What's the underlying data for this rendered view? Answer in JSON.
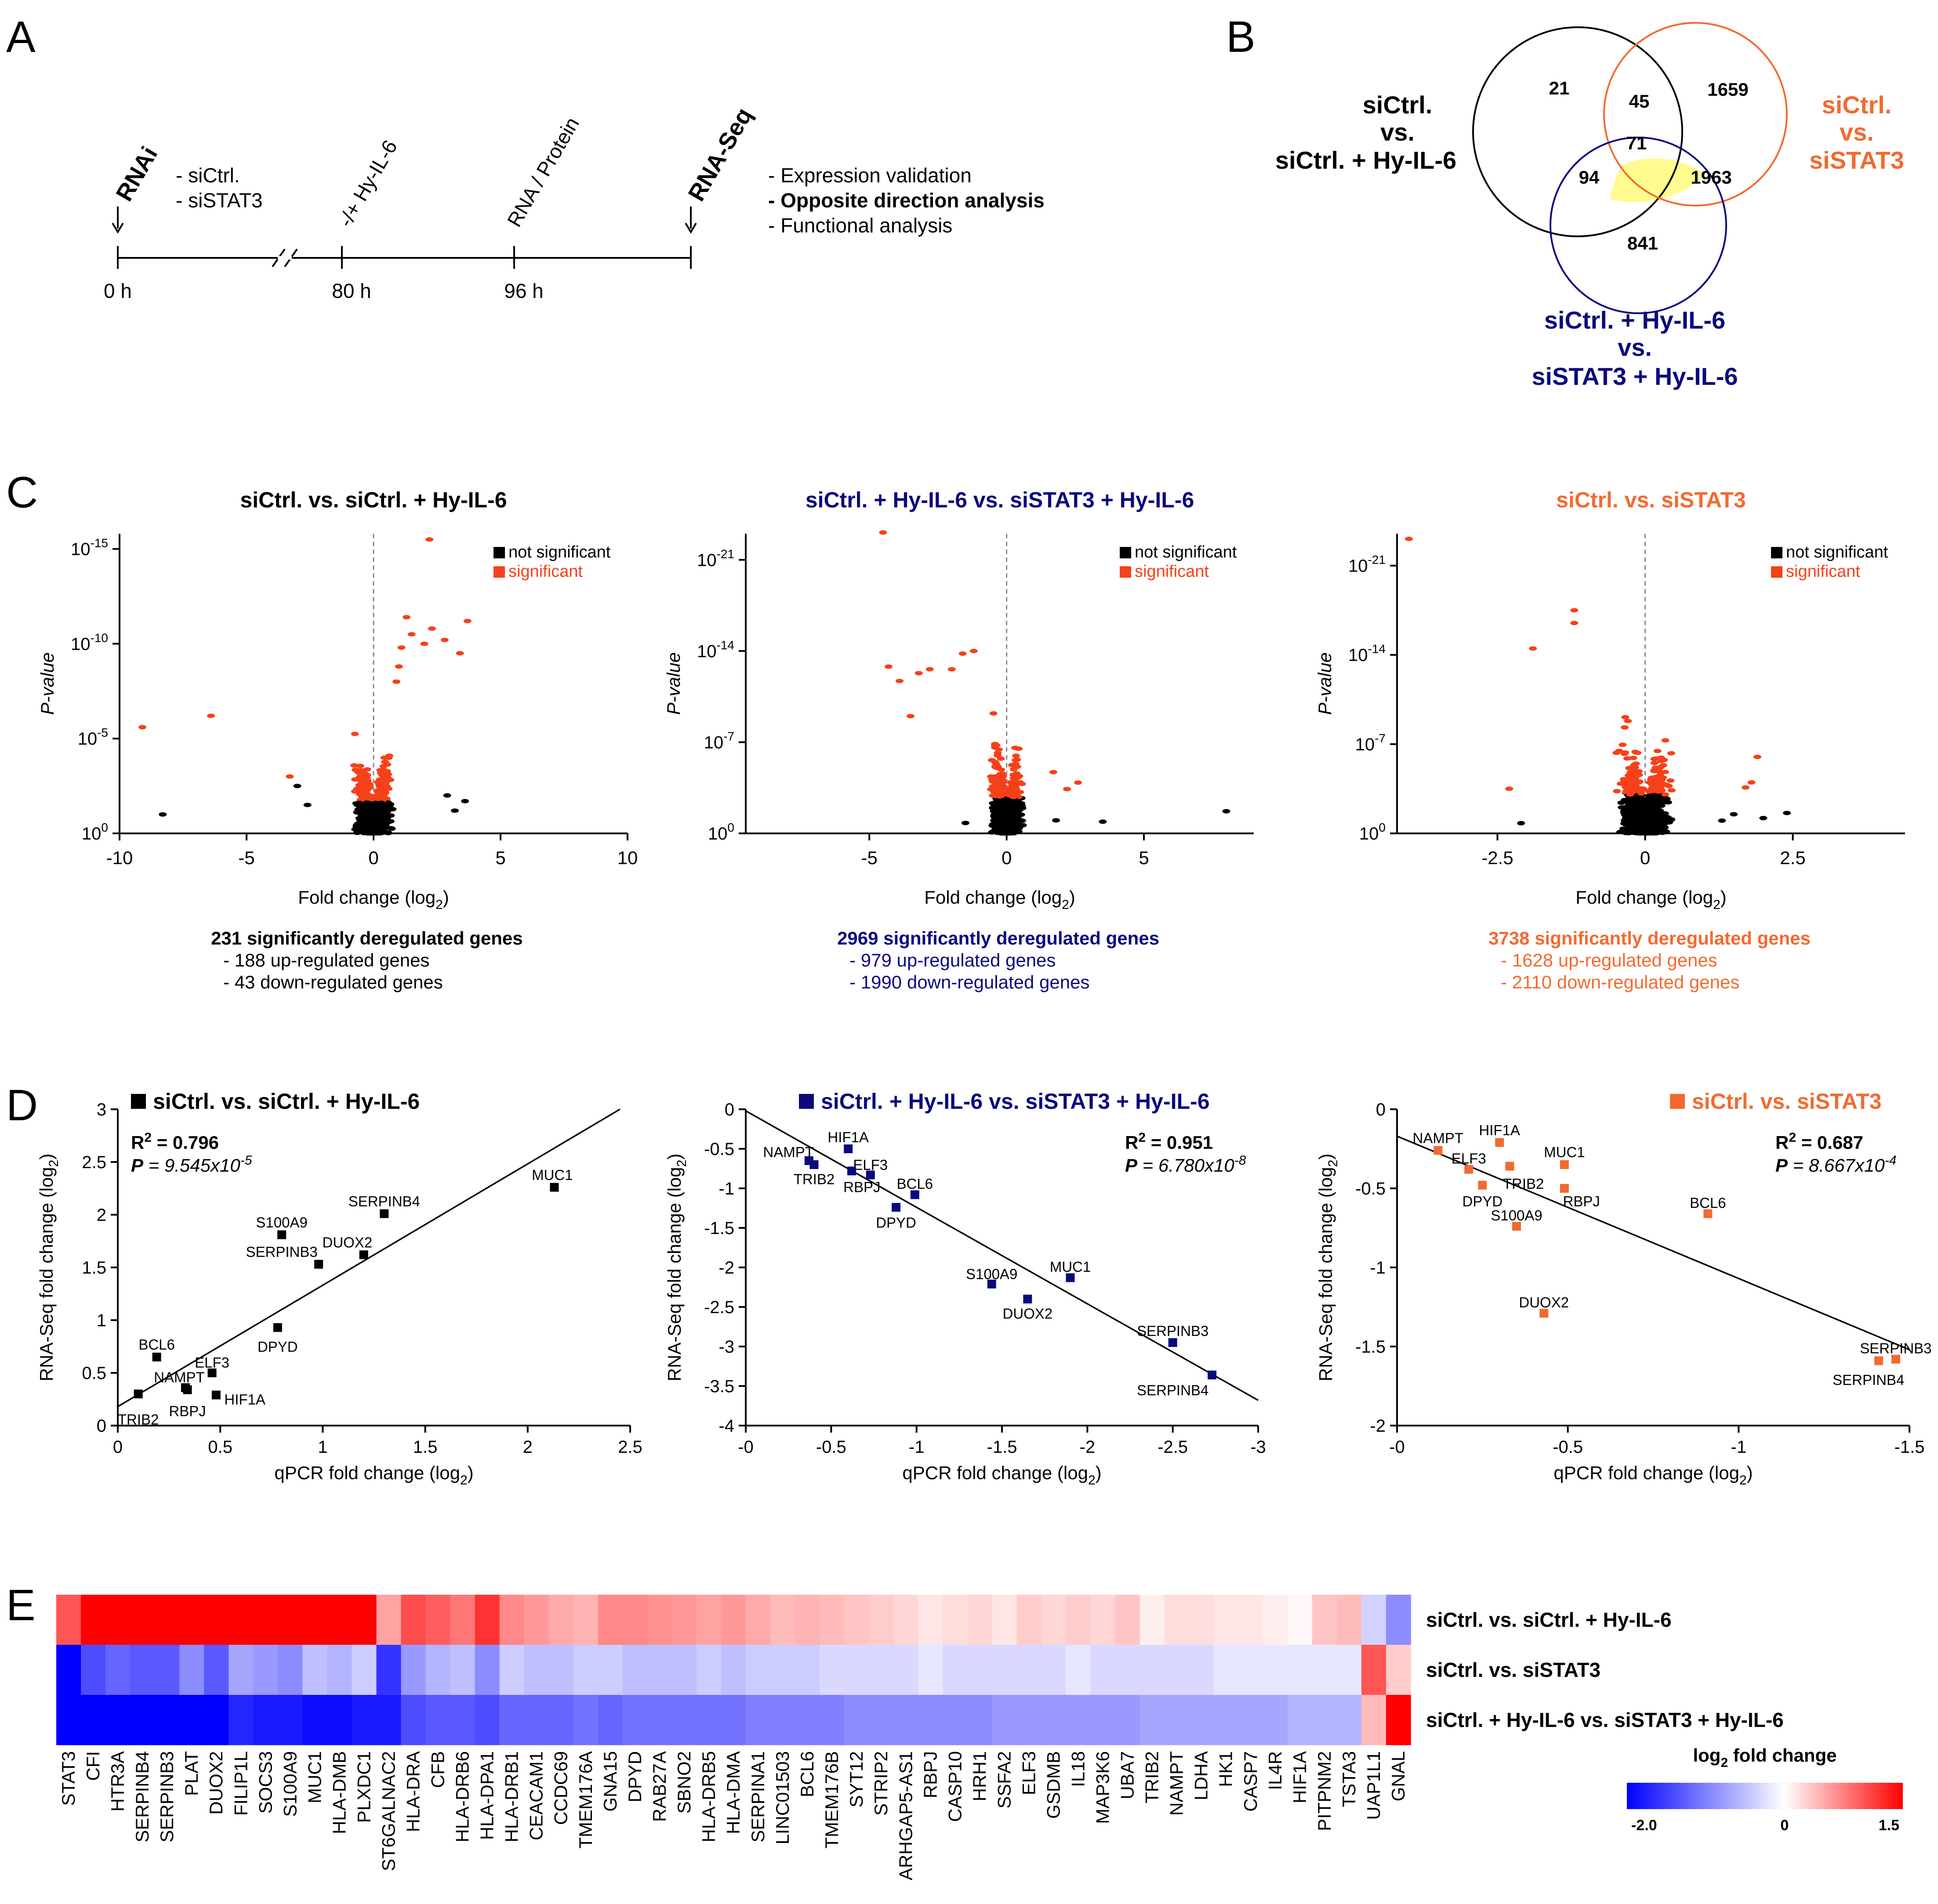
{
  "colors": {
    "black": "#000000",
    "navy": "#0A0A7D",
    "orange": "#F26A30",
    "red": "#F5411A",
    "yellow": "#FFFB8F",
    "blue": "#0000FF",
    "hmred": "#FF0000"
  },
  "panel_letters": [
    "A",
    "B",
    "C",
    "D",
    "E"
  ],
  "panel_a": {
    "rnai": "RNAi",
    "sirna": [
      "- siCtrl.",
      "- siSTAT3"
    ],
    "hy": "-/+ Hy-IL-6",
    "rnaprot": "RNA / Protein",
    "rnaseq": "RNA-Seq",
    "times": [
      "0 h",
      "80 h",
      "96 h"
    ],
    "analyses": [
      "- Expression validation",
      "- Opposite direction analysis",
      "- Functional analysis"
    ]
  },
  "panel_b": {
    "label_black": [
      "siCtrl.",
      "vs.",
      "siCtrl. + Hy-IL-6"
    ],
    "label_orange": [
      "siCtrl.",
      "vs.",
      "siSTAT3"
    ],
    "label_navy": [
      "siCtrl. + Hy-IL-6",
      "vs.",
      "siSTAT3 + Hy-IL-6"
    ],
    "counts": {
      "black_only": "21",
      "black_orange": "45",
      "orange_only": "1659",
      "center": "71",
      "black_navy": "94",
      "orange_navy": "1963",
      "navy_only": "841"
    }
  },
  "legend": {
    "not_sig": "not significant",
    "sig": "significant"
  },
  "chart_data": [
    {
      "type": "scatter",
      "panel": "C1",
      "title": "siCtrl. vs. siCtrl. + Hy-IL-6",
      "xlabel_main": "Fold change (log",
      "xlabel_sub": "2",
      "xlabel_end": ")",
      "ylabel": "P-value",
      "xlim": [
        -10,
        10
      ],
      "xticks": [
        "-10",
        "-5",
        "0",
        "5",
        "10"
      ],
      "ylim_exp": [
        0,
        15.8
      ],
      "yticks": [
        {
          "v": 0,
          "base": "10",
          "exp": "0"
        },
        {
          "v": 5,
          "base": "10",
          "exp": "-5"
        },
        {
          "v": 10,
          "base": "10",
          "exp": "-10"
        },
        {
          "v": 15,
          "base": "10",
          "exp": "-15"
        }
      ],
      "points_sig": [
        [
          2.2,
          15.5
        ],
        [
          -6.4,
          6.2
        ],
        [
          -9.1,
          5.6
        ],
        [
          3.7,
          11.2
        ],
        [
          2.8,
          10.2
        ],
        [
          2.3,
          10.8
        ],
        [
          2.0,
          10.0
        ],
        [
          1.3,
          11.4
        ],
        [
          1.5,
          10.5
        ],
        [
          1.1,
          9.8
        ],
        [
          1.0,
          8.8
        ],
        [
          0.9,
          8.0
        ],
        [
          3.4,
          9.5
        ],
        [
          -3.3,
          3.0
        ]
      ],
      "points_ns": [
        [
          -8.3,
          1.0
        ],
        [
          3.6,
          1.7
        ],
        [
          -3.0,
          2.5
        ],
        [
          2.9,
          2.0
        ],
        [
          -2.6,
          1.5
        ],
        [
          3.2,
          1.2
        ]
      ],
      "summary": [
        "231 significantly deregulated genes",
        "- 188 up-regulated genes",
        "- 43 down-regulated genes"
      ]
    },
    {
      "type": "scatter",
      "panel": "C2",
      "title": "siCtrl. + Hy-IL-6  vs. siSTAT3 + Hy-IL-6",
      "xlabel_main": "Fold change (log",
      "xlabel_sub": "2",
      "xlabel_end": ")",
      "ylabel": "P-value",
      "xlim": [
        -9.5,
        9
      ],
      "xticks": [
        "-5",
        "0",
        "5"
      ],
      "ylim_exp": [
        0,
        23
      ],
      "yticks": [
        {
          "v": 0,
          "base": "10",
          "exp": "0"
        },
        {
          "v": 7,
          "base": "10",
          "exp": "-7"
        },
        {
          "v": 14,
          "base": "10",
          "exp": "-14"
        },
        {
          "v": 21,
          "base": "10",
          "exp": "-21"
        }
      ],
      "points_sig": [
        [
          -4.5,
          23.1
        ],
        [
          -4.3,
          12.8
        ],
        [
          -2.8,
          12.6
        ],
        [
          -3.9,
          11.7
        ],
        [
          -3.2,
          12.3
        ],
        [
          -1.6,
          13.8
        ],
        [
          -1.2,
          14.0
        ],
        [
          -3.5,
          9.0
        ],
        [
          -2.0,
          12.6
        ],
        [
          2.6,
          3.9
        ],
        [
          1.7,
          4.7
        ],
        [
          2.2,
          3.4
        ]
      ],
      "points_ns": [
        [
          8.0,
          1.7
        ],
        [
          3.5,
          0.9
        ],
        [
          -1.5,
          0.8
        ],
        [
          1.8,
          1.0
        ]
      ],
      "summary": [
        "2969 significantly deregulated genes",
        "- 979 up-regulated genes",
        "- 1990 down-regulated genes"
      ]
    },
    {
      "type": "scatter",
      "panel": "C3",
      "title": "siCtrl. vs. siSTAT3",
      "xlabel_main": "Fold change (log",
      "xlabel_sub": "2",
      "xlabel_end": ")",
      "ylabel": "P-value",
      "xlim": [
        -4.2,
        4.4
      ],
      "xticks": [
        "-2.5",
        "0",
        "2.5"
      ],
      "ylim_exp": [
        0,
        23.5
      ],
      "yticks": [
        {
          "v": 0,
          "base": "10",
          "exp": "0"
        },
        {
          "v": 7,
          "base": "10",
          "exp": "-7"
        },
        {
          "v": 14,
          "base": "10",
          "exp": "-14"
        },
        {
          "v": 21,
          "base": "10",
          "exp": "-21"
        }
      ],
      "points_sig": [
        [
          -4.0,
          23.1
        ],
        [
          -1.2,
          17.5
        ],
        [
          -1.2,
          16.5
        ],
        [
          -1.9,
          14.5
        ],
        [
          1.8,
          4.0
        ],
        [
          1.7,
          3.6
        ],
        [
          -2.3,
          3.5
        ],
        [
          1.9,
          6.0
        ]
      ],
      "points_ns": [
        [
          2.4,
          1.6
        ],
        [
          1.5,
          1.5
        ],
        [
          -2.1,
          0.8
        ],
        [
          1.3,
          1.0
        ],
        [
          2.0,
          1.2
        ]
      ],
      "summary": [
        "3738 significantly deregulated genes",
        "- 1628 up-regulated genes",
        "- 2110 down-regulated genes"
      ]
    },
    {
      "type": "scatter",
      "panel": "D1",
      "title": "siCtrl. vs. siCtrl. + Hy-IL-6",
      "xlabel_main": "qPCR fold change (log",
      "xlabel_sub": "2",
      "xlabel_end": ")",
      "ylabel_main": "RNA-Seq fold change (log",
      "ylabel_sub": "2",
      "ylabel_end": ")",
      "r2_label": "R",
      "r2_exp": "2",
      "r2_val": " = 0.796",
      "p_label": "P",
      "p_val": " = 9.545x10",
      "p_exp": "-5",
      "xlim": [
        0,
        2.5
      ],
      "ylim": [
        0,
        3
      ],
      "xticks": [
        [
          0,
          "0"
        ],
        [
          0.5,
          "0.5"
        ],
        [
          1,
          "1"
        ],
        [
          1.5,
          "1.5"
        ],
        [
          2,
          "2"
        ],
        [
          2.5,
          "2.5"
        ]
      ],
      "yticks": [
        [
          0,
          "0"
        ],
        [
          0.5,
          "0.5"
        ],
        [
          1,
          "1"
        ],
        [
          1.5,
          "1.5"
        ],
        [
          2,
          "2"
        ],
        [
          2.5,
          "2.5"
        ],
        [
          3,
          "3"
        ]
      ],
      "fit": [
        [
          0,
          0.18
        ],
        [
          2.45,
          3.0
        ]
      ],
      "points": [
        {
          "gene": "MUC1",
          "x": 2.13,
          "y": 2.26,
          "lx": 2.12,
          "ly": 2.38
        },
        {
          "gene": "SERPINB4",
          "x": 1.3,
          "y": 2.01,
          "lx": 1.3,
          "ly": 2.13
        },
        {
          "gene": "S100A9",
          "x": 0.8,
          "y": 1.81,
          "lx": 0.8,
          "ly": 1.93
        },
        {
          "gene": "DUOX2",
          "x": 1.2,
          "y": 1.62,
          "lx": 1.12,
          "ly": 1.74
        },
        {
          "gene": "SERPINB3",
          "x": 0.98,
          "y": 1.53,
          "lx": 0.8,
          "ly": 1.65
        },
        {
          "gene": "DPYD",
          "x": 0.78,
          "y": 0.93,
          "lx": 0.78,
          "ly": 0.75
        },
        {
          "gene": "BCL6",
          "x": 0.19,
          "y": 0.65,
          "lx": 0.19,
          "ly": 0.77
        },
        {
          "gene": "ELF3",
          "x": 0.46,
          "y": 0.5,
          "lx": 0.46,
          "ly": 0.6
        },
        {
          "gene": "NAMPT",
          "x": 0.33,
          "y": 0.36,
          "lx": 0.3,
          "ly": 0.46
        },
        {
          "gene": "RBPJ",
          "x": 0.34,
          "y": 0.34,
          "lx": 0.34,
          "ly": 0.14
        },
        {
          "gene": "HIF1A",
          "x": 0.48,
          "y": 0.29,
          "lx": 0.62,
          "ly": 0.25
        },
        {
          "gene": "TRIB2",
          "x": 0.1,
          "y": 0.3,
          "lx": 0.1,
          "ly": 0.06
        }
      ]
    },
    {
      "type": "scatter",
      "panel": "D2",
      "title": "siCtrl. + Hy-IL-6 vs. siSTAT3 + Hy-IL-6",
      "xlabel_main": "qPCR fold change (log",
      "xlabel_sub": "2",
      "xlabel_end": ")",
      "ylabel_main": "RNA-Seq fold change (log",
      "ylabel_sub": "2",
      "ylabel_end": ")",
      "r2_label": "R",
      "r2_exp": "2",
      "r2_val": " = 0.951",
      "p_label": "P",
      "p_val": " = 6.780x10",
      "p_exp": "-8",
      "xlim": [
        0,
        -3
      ],
      "ylim": [
        -4,
        0
      ],
      "xticks": [
        [
          0,
          "-0"
        ],
        [
          -0.5,
          "-0.5"
        ],
        [
          -1,
          "-1"
        ],
        [
          -1.5,
          "-1.5"
        ],
        [
          -2,
          "-2"
        ],
        [
          -2.5,
          "-2.5"
        ],
        [
          -3,
          "-3"
        ]
      ],
      "yticks": [
        [
          0,
          "0"
        ],
        [
          -0.5,
          "-0.5"
        ],
        [
          -1,
          "-1"
        ],
        [
          -1.5,
          "-1.5"
        ],
        [
          -2,
          "-2"
        ],
        [
          -2.5,
          "-2.5"
        ],
        [
          -3,
          "-3"
        ],
        [
          -3.5,
          "-3.5"
        ],
        [
          -4,
          "-4"
        ]
      ],
      "fit": [
        [
          0,
          -0.02
        ],
        [
          -3,
          -3.68
        ]
      ],
      "points": [
        {
          "gene": "HIF1A",
          "x": -0.6,
          "y": -0.5,
          "lx": -0.6,
          "ly": -0.35
        },
        {
          "gene": "NAMPT",
          "x": -0.37,
          "y": -0.65,
          "lx": -0.25,
          "ly": -0.54
        },
        {
          "gene": "ELF3",
          "x": -0.73,
          "y": -0.83,
          "lx": -0.73,
          "ly": -0.7
        },
        {
          "gene": "TRIB2",
          "x": -0.4,
          "y": -0.7,
          "lx": -0.4,
          "ly": -0.88
        },
        {
          "gene": "RBPJ",
          "x": -0.62,
          "y": -0.78,
          "lx": -0.68,
          "ly": -0.98
        },
        {
          "gene": "BCL6",
          "x": -0.99,
          "y": -1.08,
          "lx": -0.99,
          "ly": -0.94
        },
        {
          "gene": "DPYD",
          "x": -0.88,
          "y": -1.24,
          "lx": -0.88,
          "ly": -1.43
        },
        {
          "gene": "S100A9",
          "x": -1.44,
          "y": -2.21,
          "lx": -1.44,
          "ly": -2.08
        },
        {
          "gene": "MUC1",
          "x": -1.9,
          "y": -2.13,
          "lx": -1.9,
          "ly": -1.99
        },
        {
          "gene": "DUOX2",
          "x": -1.65,
          "y": -2.4,
          "lx": -1.65,
          "ly": -2.58
        },
        {
          "gene": "SERPINB3",
          "x": -2.5,
          "y": -2.95,
          "lx": -2.5,
          "ly": -2.8
        },
        {
          "gene": "SERPINB4",
          "x": -2.73,
          "y": -3.36,
          "lx": -2.5,
          "ly": -3.55
        }
      ]
    },
    {
      "type": "scatter",
      "panel": "D3",
      "title": "siCtrl. vs. siSTAT3",
      "xlabel_main": "qPCR fold change (log",
      "xlabel_sub": "2",
      "xlabel_end": ")",
      "ylabel_main": "RNA-Seq fold change (log",
      "ylabel_sub": "2",
      "ylabel_end": ")",
      "r2_label": "R",
      "r2_exp": "2",
      "r2_val": " = 0.687",
      "p_label": "P",
      "p_val": " = 8.667x10",
      "p_exp": "-4",
      "xlim": [
        0,
        -1.5
      ],
      "ylim": [
        -2,
        0
      ],
      "xticks": [
        [
          0,
          "-0"
        ],
        [
          -0.5,
          "-0.5"
        ],
        [
          -1,
          "-1"
        ],
        [
          -1.5,
          "-1.5"
        ]
      ],
      "yticks": [
        [
          0,
          "0"
        ],
        [
          -0.5,
          "-0.5"
        ],
        [
          -1,
          "-1"
        ],
        [
          -1.5,
          "-1.5"
        ],
        [
          -2,
          "-2"
        ]
      ],
      "fit": [
        [
          0,
          -0.17
        ],
        [
          -1.5,
          -1.52
        ]
      ],
      "points": [
        {
          "gene": "NAMPT",
          "x": -0.12,
          "y": -0.26,
          "lx": -0.12,
          "ly": -0.18
        },
        {
          "gene": "HIF1A",
          "x": -0.3,
          "y": -0.21,
          "lx": -0.3,
          "ly": -0.13
        },
        {
          "gene": "ELF3",
          "x": -0.21,
          "y": -0.38,
          "lx": -0.21,
          "ly": -0.31
        },
        {
          "gene": "TRIB2",
          "x": -0.33,
          "y": -0.36,
          "lx": -0.37,
          "ly": -0.47
        },
        {
          "gene": "MUC1",
          "x": -0.49,
          "y": -0.35,
          "lx": -0.49,
          "ly": -0.27
        },
        {
          "gene": "DPYD",
          "x": -0.25,
          "y": -0.48,
          "lx": -0.25,
          "ly": -0.58
        },
        {
          "gene": "RBPJ",
          "x": -0.49,
          "y": -0.5,
          "lx": -0.54,
          "ly": -0.58
        },
        {
          "gene": "S100A9",
          "x": -0.35,
          "y": -0.74,
          "lx": -0.35,
          "ly": -0.67
        },
        {
          "gene": "BCL6",
          "x": -0.91,
          "y": -0.66,
          "lx": -0.91,
          "ly": -0.59
        },
        {
          "gene": "DUOX2",
          "x": -0.43,
          "y": -1.29,
          "lx": -0.43,
          "ly": -1.22
        },
        {
          "gene": "SERPINB3",
          "x": -1.46,
          "y": -1.58,
          "lx": -1.46,
          "ly": -1.51
        },
        {
          "gene": "SERPINB4",
          "x": -1.41,
          "y": -1.59,
          "lx": -1.38,
          "ly": -1.71
        }
      ]
    },
    {
      "type": "heatmap",
      "panel": "E",
      "genes": [
        "STAT3",
        "CFI",
        "HTR3A",
        "SERPINB4",
        "SERPINB3",
        "PLAT",
        "DUOX2",
        "FILIP1L",
        "SOCS3",
        "S100A9",
        "MUC1",
        "HLA-DMB",
        "PLXDC1",
        "ST6GALNAC2",
        "HLA-DRA",
        "CFB",
        "HLA-DRB6",
        "HLA-DPA1",
        "HLA-DRB1",
        "CEACAM1",
        "CCDC69",
        "TMEM176A",
        "GNA15",
        "DPYD",
        "RAB27A",
        "SBNO2",
        "HLA-DRB5",
        "HLA-DMA",
        "SERPINA1",
        "LINC01503",
        "BCL6",
        "TMEM176B",
        "SYT12",
        "STRIP2",
        "ARHGAP5-AS1",
        "RBPJ",
        "CASP10",
        "HRH1",
        "SSFA2",
        "ELF3",
        "GSDMB",
        "IL18",
        "MAP3K6",
        "UBA7",
        "TRIB2",
        "NAMPT",
        "LDHA",
        "HK1",
        "CASP7",
        "IL4R",
        "HIF1A",
        "PITPNM2",
        "TSTA3",
        "UAP1L1",
        "GNAL"
      ],
      "rows": [
        "siCtrl. vs. siCtrl. + Hy-IL-6",
        "siCtrl. vs. siSTAT3",
        "siCtrl. + Hy-IL-6 vs. siSTAT3 + Hy-IL-6"
      ],
      "values": [
        [
          1.0,
          1.5,
          1.5,
          1.5,
          1.5,
          1.5,
          1.5,
          1.5,
          1.5,
          1.5,
          1.5,
          1.5,
          1.5,
          0.55,
          1.05,
          0.95,
          0.8,
          1.2,
          0.7,
          0.6,
          0.5,
          0.45,
          0.7,
          0.7,
          0.65,
          0.6,
          0.55,
          0.6,
          0.5,
          0.4,
          0.45,
          0.4,
          0.35,
          0.3,
          0.25,
          0.15,
          0.2,
          0.25,
          0.15,
          0.3,
          0.25,
          0.3,
          0.25,
          0.35,
          0.1,
          0.2,
          0.2,
          0.15,
          0.15,
          0.1,
          0.05,
          0.35,
          0.4,
          -0.35,
          -0.9
        ],
        [
          -2.0,
          -1.4,
          -1.2,
          -1.3,
          -1.3,
          -0.9,
          -1.3,
          -0.7,
          -0.8,
          -0.9,
          -0.5,
          -0.6,
          -0.4,
          -1.6,
          -0.8,
          -0.6,
          -0.5,
          -0.9,
          -0.4,
          -0.5,
          -0.5,
          -0.4,
          -0.4,
          -0.5,
          -0.5,
          -0.5,
          -0.4,
          -0.5,
          -0.4,
          -0.4,
          -0.4,
          -0.3,
          -0.3,
          -0.3,
          -0.3,
          -0.2,
          -0.3,
          -0.3,
          -0.3,
          -0.3,
          -0.3,
          -0.2,
          -0.3,
          -0.3,
          -0.3,
          -0.3,
          -0.3,
          -0.2,
          -0.2,
          -0.2,
          -0.2,
          -0.2,
          -0.2,
          1.0,
          0.3
        ],
        [
          -2.0,
          -2.0,
          -2.0,
          -2.0,
          -2.0,
          -2.0,
          -2.0,
          -1.7,
          -1.8,
          -1.8,
          -1.9,
          -1.9,
          -1.8,
          -1.8,
          -1.4,
          -1.3,
          -1.3,
          -1.4,
          -1.2,
          -1.2,
          -1.2,
          -1.1,
          -1.2,
          -1.1,
          -1.1,
          -1.1,
          -1.1,
          -1.1,
          -1.0,
          -1.0,
          -1.0,
          -1.0,
          -0.9,
          -0.9,
          -0.9,
          -0.9,
          -0.9,
          -0.9,
          -0.8,
          -0.8,
          -0.8,
          -0.8,
          -0.8,
          -0.8,
          -0.7,
          -0.7,
          -0.7,
          -0.7,
          -0.7,
          -0.7,
          -0.6,
          -0.6,
          -0.6,
          0.4,
          1.5
        ]
      ],
      "colorbar": {
        "title_main": "log",
        "title_sub": "2",
        "title_end": " fold change",
        "min_label": "-2.0",
        "mid_label": "0",
        "max_label": "1.5",
        "min": -2.0,
        "max": 1.5
      }
    }
  ]
}
